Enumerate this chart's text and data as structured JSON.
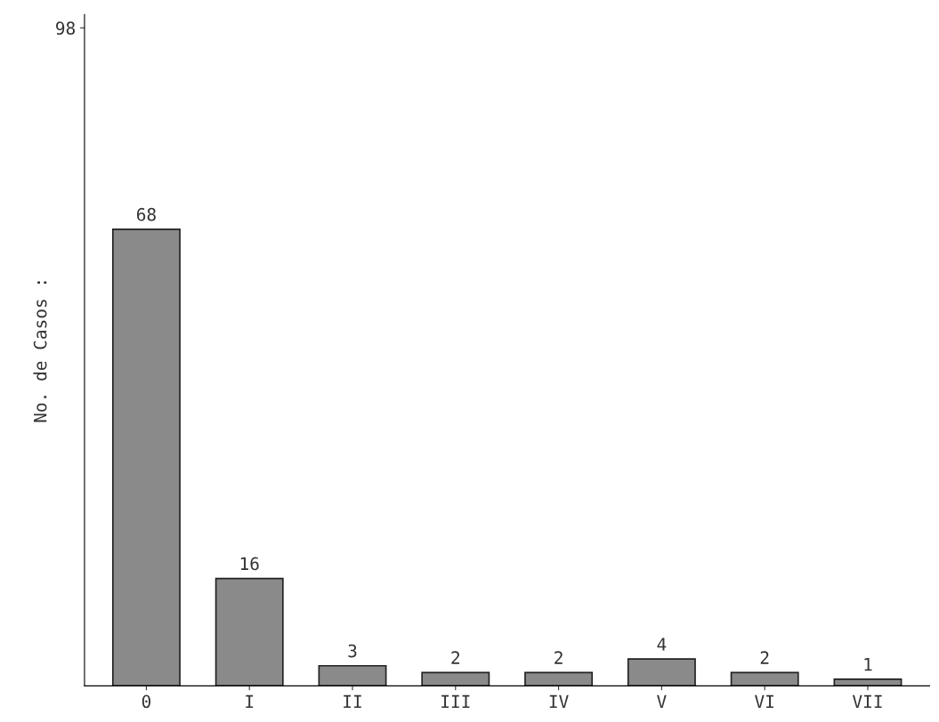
{
  "chart_data": {
    "type": "bar",
    "ylabel": "No. de Casos :",
    "categories": [
      "0",
      "I",
      "II",
      "III",
      "IV",
      "V",
      "VI",
      "VII"
    ],
    "values": [
      68,
      16,
      3,
      2,
      2,
      4,
      2,
      1
    ],
    "color": "#8a8a8a",
    "ylim": [
      0,
      100
    ],
    "yticks": [
      98
    ],
    "data_labels": true,
    "grid": false,
    "legend": false
  }
}
